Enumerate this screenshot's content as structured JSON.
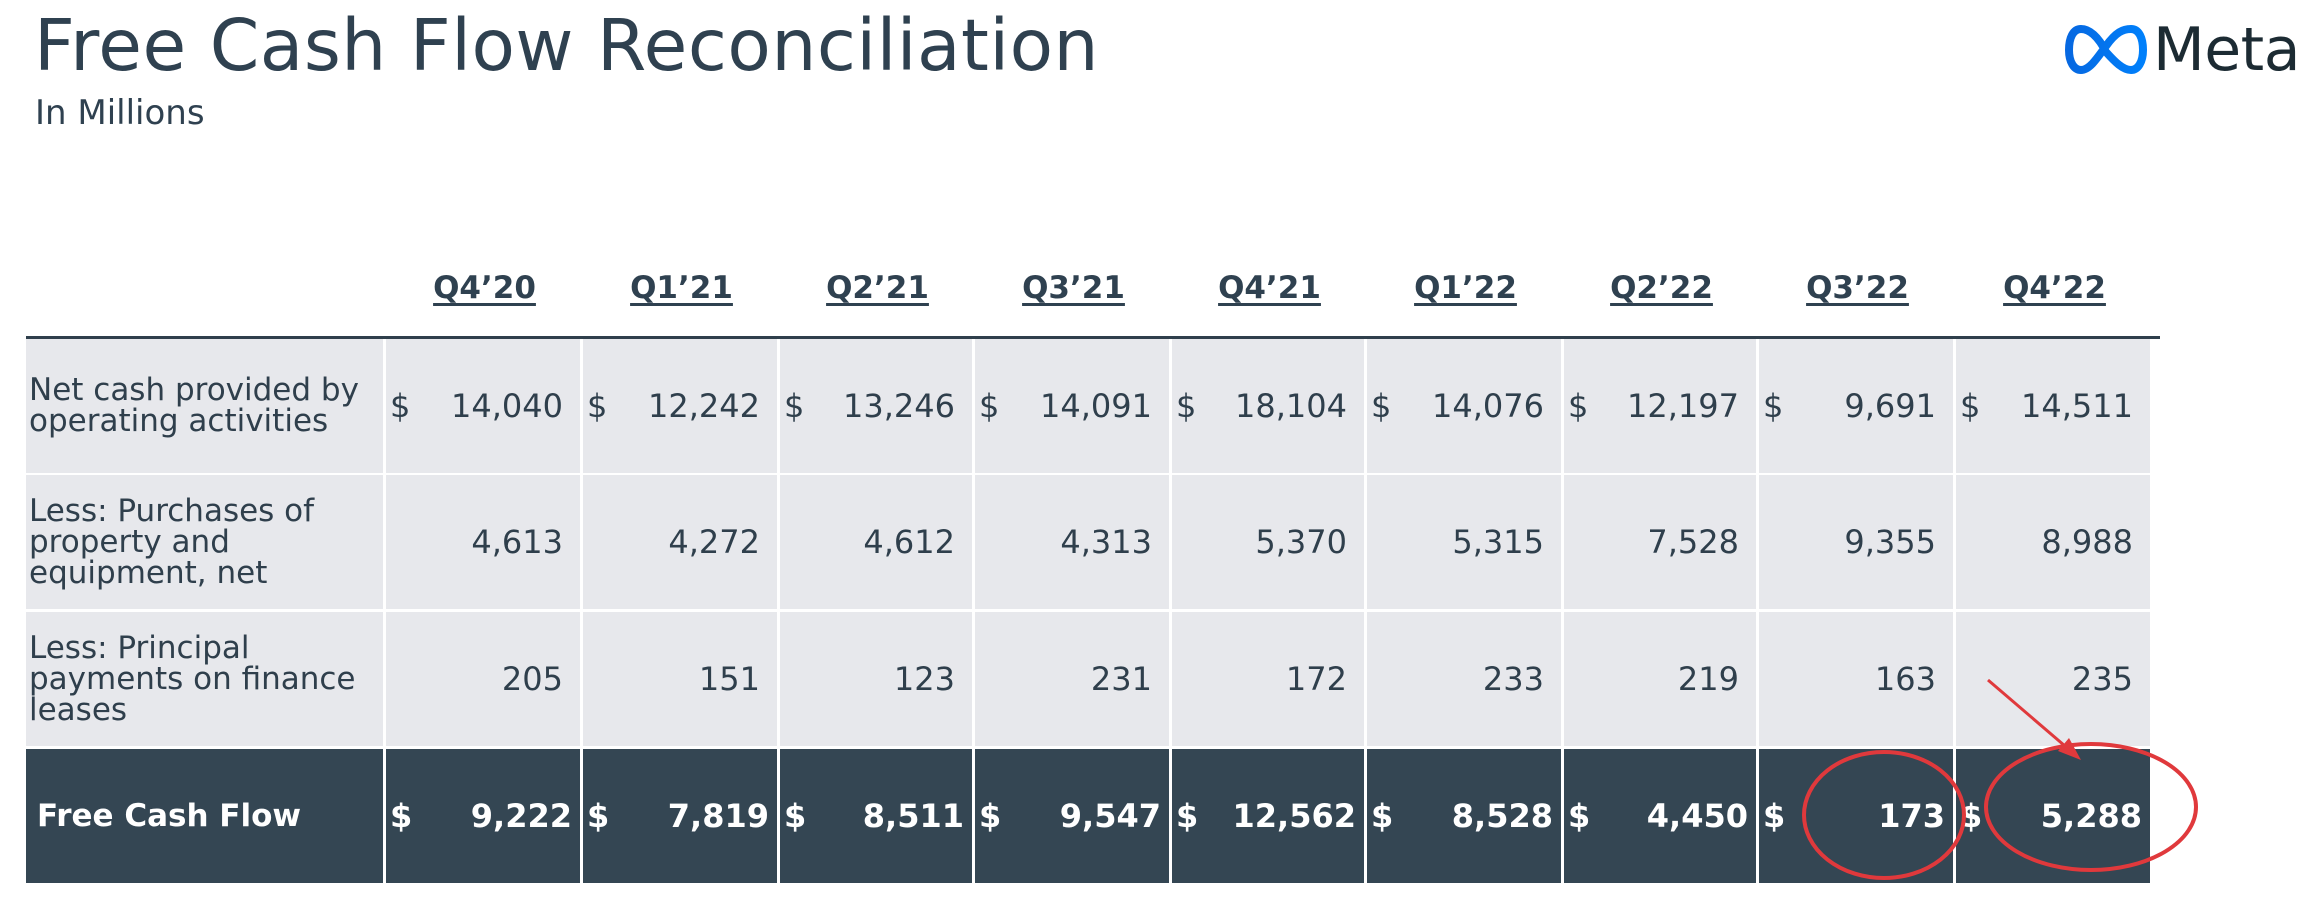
{
  "header": {
    "title": "Free Cash Flow Reconciliation",
    "subtitle": "In Millions"
  },
  "logo": {
    "wordmark": "Meta",
    "icon": "meta-infinity-icon",
    "colors": [
      "#0668e1",
      "#0080fb"
    ]
  },
  "table": {
    "columns": [
      "Q4’20",
      "Q1’21",
      "Q2’21",
      "Q3’21",
      "Q4’21",
      "Q1’22",
      "Q2’22",
      "Q3’22",
      "Q4’22"
    ],
    "currency_symbol": "$",
    "rows": [
      {
        "label_lines": [
          "Net cash provided by",
          "operating activities"
        ],
        "show_currency": true,
        "style": "light",
        "values": [
          "14,040",
          "12,242",
          "13,246",
          "14,091",
          "18,104",
          "14,076",
          "12,197",
          "9,691",
          "14,511"
        ]
      },
      {
        "label_lines": [
          "Less: Purchases of",
          "property and",
          "equipment, net"
        ],
        "show_currency": false,
        "style": "light",
        "values": [
          "4,613",
          "4,272",
          "4,612",
          "4,313",
          "5,370",
          "5,315",
          "7,528",
          "9,355",
          "8,988"
        ]
      },
      {
        "label_lines": [
          "Less: Principal",
          "payments on finance",
          "leases"
        ],
        "show_currency": false,
        "style": "light",
        "values": [
          "205",
          "151",
          "123",
          "231",
          "172",
          "233",
          "219",
          "163",
          "235"
        ]
      },
      {
        "label_lines": [
          "Free Cash Flow"
        ],
        "show_currency": true,
        "style": "dark",
        "values": [
          "9,222",
          "7,819",
          "8,511",
          "9,547",
          "12,562",
          "8,528",
          "4,450",
          "173",
          "5,288"
        ]
      }
    ]
  },
  "annotations": {
    "circled_cells": [
      "Q3’22",
      "Q4’22"
    ],
    "arrow_target": "Q4’22",
    "color": "#e0393c"
  },
  "colors": {
    "text": "#2f4150",
    "light_row": "#e7e8ec",
    "dark_row": "#344653"
  }
}
